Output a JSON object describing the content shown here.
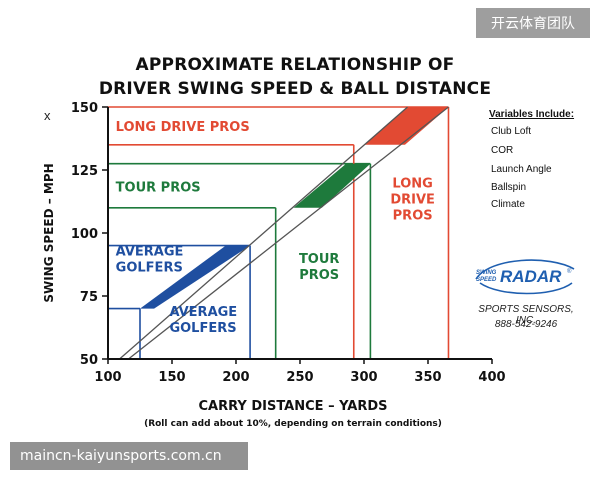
{
  "watermarks": {
    "top_right": "开云体育团队",
    "bottom_left": "maincn-kaiyunsports.com.cn"
  },
  "corner_mark": "x",
  "side_panel": {
    "variables_title": "Variables Include:",
    "variables": [
      "Club Loft",
      "COR",
      "Launch Angle",
      "Ballspin",
      "Climate"
    ],
    "logo": {
      "small_text_top": "SWING",
      "small_text_bottom": "SPEED",
      "big_text": "RADAR",
      "trademark": "®"
    },
    "company": "SPORTS SENSORS, INC.",
    "phone": "888-542-9246"
  },
  "colors": {
    "long_drive": "#e24a33",
    "tour": "#1e7a3c",
    "average": "#1f4fa0",
    "logo_blue": "#1f5fb0"
  },
  "chart_data": {
    "type": "line",
    "title": "APPROXIMATE RELATIONSHIP OF",
    "subtitle": "DRIVER SWING SPEED & BALL DISTANCE",
    "xlabel": "CARRY DISTANCE – YARDS",
    "ylabel": "SWING SPEED – MPH",
    "note": "(Roll can add about 10%, depending on terrain conditions)",
    "xlim": [
      100,
      400
    ],
    "ylim": [
      50,
      150
    ],
    "x_ticks": [
      100,
      150,
      200,
      250,
      300,
      350,
      400
    ],
    "y_ticks": [
      50,
      75,
      100,
      125,
      150
    ],
    "grid": false,
    "series": [
      {
        "points": [
          [
            109,
            50
          ],
          [
            334,
            150
          ]
        ]
      },
      {
        "points": [
          [
            116,
            50
          ],
          [
            366,
            150
          ]
        ]
      }
    ],
    "bands": [
      {
        "group": "average",
        "speed_range": [
          70,
          95
        ],
        "distance_range": [
          125,
          211
        ],
        "polygon": [
          [
            125,
            70
          ],
          [
            136,
            70
          ],
          [
            211,
            95
          ],
          [
            192,
            95
          ]
        ],
        "labels": [
          {
            "text": [
              "AVERAGE",
              "GOLFERS"
            ],
            "anchor": [
              106,
              91
            ],
            "align": "start"
          },
          {
            "text": [
              "AVERAGE",
              "GOLFERS"
            ],
            "anchor": [
              148,
              67
            ],
            "align": "start"
          }
        ]
      },
      {
        "group": "tour",
        "speed_range": [
          110,
          127.5
        ],
        "distance_range": [
          231,
          305
        ],
        "polygon": [
          [
            245,
            110
          ],
          [
            267,
            110
          ],
          [
            305,
            127.5
          ],
          [
            286,
            127.5
          ]
        ],
        "labels": [
          {
            "text": [
              "TOUR PROS"
            ],
            "anchor": [
              106,
              116.5
            ],
            "align": "start"
          },
          {
            "text": [
              "TOUR",
              "PROS"
            ],
            "anchor": [
              265,
              88
            ],
            "align": "middle"
          }
        ]
      },
      {
        "group": "long_drive",
        "speed_range": [
          135,
          150
        ],
        "distance_range": [
          292,
          366
        ],
        "polygon": [
          [
            300,
            135
          ],
          [
            332,
            135
          ],
          [
            366,
            150
          ],
          [
            334,
            150
          ]
        ],
        "labels": [
          {
            "text": [
              "LONG DRIVE PROS"
            ],
            "anchor": [
              106,
              140.5
            ],
            "align": "start"
          },
          {
            "text": [
              "LONG",
              "DRIVE",
              "PROS"
            ],
            "anchor": [
              338,
              118
            ],
            "align": "middle"
          }
        ]
      }
    ],
    "guide_lines": [
      {
        "group": "average",
        "speed": 70,
        "distance": 125
      },
      {
        "group": "average",
        "speed": 95,
        "distance": 211
      },
      {
        "group": "tour",
        "speed": 110,
        "distance": 231
      },
      {
        "group": "tour",
        "speed": 127.5,
        "distance": 305
      },
      {
        "group": "long_drive",
        "speed": 135,
        "distance": 292
      },
      {
        "group": "long_drive",
        "speed": 150,
        "distance": 366
      }
    ]
  }
}
